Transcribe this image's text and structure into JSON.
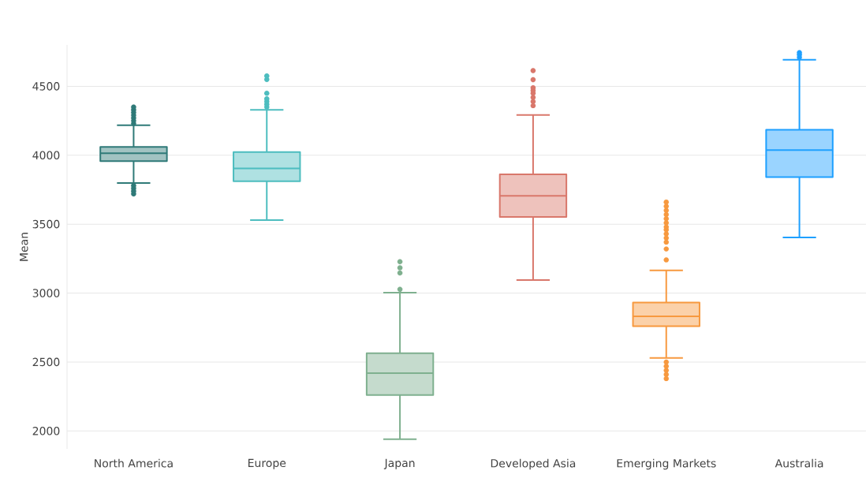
{
  "chart_data": {
    "type": "box",
    "ylabel": "Mean",
    "categories": [
      "North America",
      "Europe",
      "Japan",
      "Developed Asia",
      "Emerging Markets",
      "Australia"
    ],
    "colors": [
      "#2f7a78",
      "#4dbdbf",
      "#7fb08f",
      "#d9776b",
      "#f7993f",
      "#1ea0ff"
    ],
    "boxes": [
      {
        "low": 3798,
        "q1": 3957,
        "median": 4015,
        "q3": 4061,
        "high": 4217,
        "outliers": [
          4230,
          4250,
          4270,
          4290,
          4310,
          4330,
          4350,
          3780,
          3760,
          3740,
          3720
        ]
      },
      {
        "low": 3529,
        "q1": 3811,
        "median": 3905,
        "q3": 4023,
        "high": 4330,
        "outliers": [
          4350,
          4370,
          4390,
          4410,
          4450,
          4550,
          4575
        ]
      },
      {
        "low": 1940,
        "q1": 2261,
        "median": 2419,
        "q3": 2564,
        "high": 3003,
        "outliers": [
          3027,
          3146,
          3184,
          3228
        ]
      },
      {
        "low": 3094,
        "q1": 3552,
        "median": 3705,
        "q3": 3861,
        "high": 4292,
        "outliers": [
          4360,
          4390,
          4420,
          4450,
          4470,
          4490,
          4548,
          4614
        ]
      },
      {
        "low": 2530,
        "q1": 2760,
        "median": 2831,
        "q3": 2932,
        "high": 3165,
        "outliers": [
          3241,
          3320,
          3370,
          3400,
          3430,
          3460,
          3480,
          3510,
          3540,
          3570,
          3600,
          3630,
          3660,
          2500,
          2470,
          2440,
          2410,
          2380
        ]
      },
      {
        "low": 3403,
        "q1": 3842,
        "median": 4038,
        "q3": 4185,
        "high": 4692,
        "outliers": [
          4710,
          4730,
          4745
        ]
      }
    ],
    "ylim": [
      1870,
      4800
    ],
    "yticks": [
      2000,
      2500,
      3000,
      3500,
      4000,
      4500
    ],
    "grid": "y"
  }
}
